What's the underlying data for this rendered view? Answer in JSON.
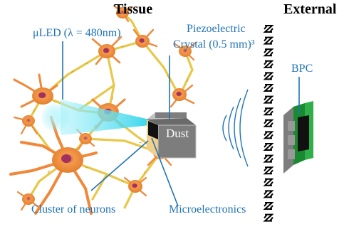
{
  "headers": {
    "tissue": "Tissue",
    "external": "External"
  },
  "labels": {
    "uled": "μLED (λ = 480nm)",
    "piezo_line1": "Piezoelectric",
    "piezo_line2": "Crystal (0.5 mm)³",
    "bpc": "BPC",
    "dust": "Dust",
    "cluster": "Cluster of neurons",
    "microelectronics": "Microelectronics"
  },
  "colors": {
    "label_blue": "#1f73b7",
    "neuron_orange": "#f0883a",
    "axon_yellow": "#e8c84a",
    "light_cyan": "#7fe8f5",
    "dust_gray": "#7d7d7d",
    "board_green": "#2fae4a"
  },
  "icons": {
    "barrier": "zigzag-wall-icon",
    "waves": "ultrasound-waves-icon"
  }
}
